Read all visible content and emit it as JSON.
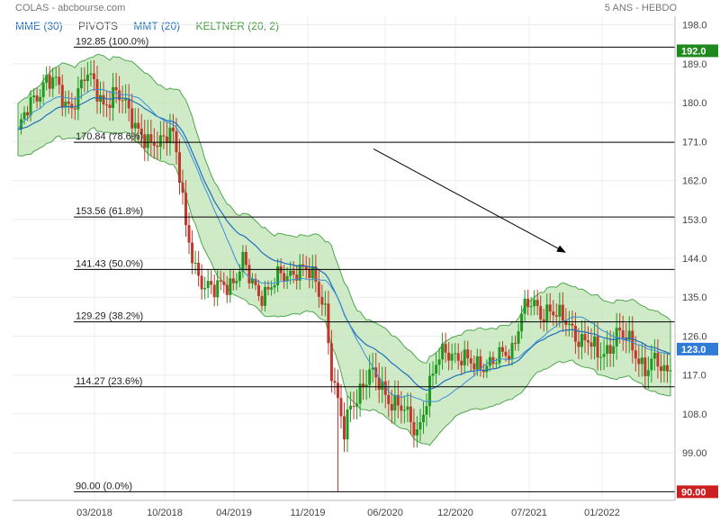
{
  "header": {
    "title": "COLAS - abcbourse.com",
    "period": "5 ANS - HEBDO"
  },
  "legend": [
    {
      "label": "MME (30)",
      "color": "#1f6fbf"
    },
    {
      "label": "PIVOTS",
      "color": "#555555"
    },
    {
      "label": "MMT (20)",
      "color": "#1f6fbf"
    },
    {
      "label": "KELTNER (20, 2)",
      "color": "#3c9a3c"
    }
  ],
  "chart_data": {
    "type": "candlestick",
    "y_axis": {
      "range": [
        88,
        200
      ],
      "ticks": [
        "198.0",
        "189.0",
        "180.0",
        "171.0",
        "162.0",
        "153.0",
        "144.0",
        "135.0",
        "126.0",
        "117.0",
        "108.0",
        "99.00"
      ]
    },
    "x_axis": {
      "ticks": [
        "03/2018",
        "10/2018",
        "04/2019",
        "11/2019",
        "06/2020",
        "12/2020",
        "07/2021",
        "01/2022"
      ]
    },
    "fibonacci_levels": [
      {
        "value": 192.85,
        "label": "192.85  (100.0%)"
      },
      {
        "value": 170.84,
        "label": "170.84  (78.6%)"
      },
      {
        "value": 153.56,
        "label": "153.56  (61.8%)"
      },
      {
        "value": 141.43,
        "label": "141.43  (50.0%)"
      },
      {
        "value": 129.29,
        "label": "129.29  (38.2%)"
      },
      {
        "value": 114.27,
        "label": "114.27  (23.6%)"
      },
      {
        "value": 90.0,
        "label": "90.00  (0.0%)"
      }
    ],
    "price_badges": [
      {
        "value": 192.0,
        "label": "192.0",
        "color": "#1e8a1e"
      },
      {
        "value": 123.0,
        "label": "123.0",
        "color": "#2f7bd6"
      },
      {
        "value": 90.0,
        "label": "90.00",
        "color": "#cc1f1f"
      }
    ],
    "close_path": [
      [
        0,
        173
      ],
      [
        3,
        178
      ],
      [
        6,
        182
      ],
      [
        9,
        186
      ],
      [
        12,
        184
      ],
      [
        15,
        179
      ],
      [
        18,
        181
      ],
      [
        21,
        186
      ],
      [
        24,
        184
      ],
      [
        27,
        180
      ],
      [
        30,
        182
      ],
      [
        33,
        180
      ],
      [
        36,
        177
      ],
      [
        39,
        173
      ],
      [
        42,
        169
      ],
      [
        45,
        171
      ],
      [
        48,
        175
      ],
      [
        49,
        173
      ],
      [
        51,
        163
      ],
      [
        53,
        150
      ],
      [
        56,
        142
      ],
      [
        59,
        138
      ],
      [
        62,
        136
      ],
      [
        65,
        138
      ],
      [
        68,
        139
      ],
      [
        71,
        143
      ],
      [
        73,
        139
      ],
      [
        76,
        136
      ],
      [
        79,
        137
      ],
      [
        82,
        139
      ],
      [
        85,
        140
      ],
      [
        88,
        142
      ],
      [
        91,
        141
      ],
      [
        94,
        138
      ],
      [
        97,
        133
      ],
      [
        99,
        118
      ],
      [
        101,
        110
      ],
      [
        103,
        103
      ],
      [
        105,
        110
      ],
      [
        108,
        114
      ],
      [
        111,
        117
      ],
      [
        114,
        115
      ],
      [
        117,
        112
      ],
      [
        120,
        110
      ],
      [
        123,
        107
      ],
      [
        126,
        104
      ],
      [
        129,
        112
      ],
      [
        132,
        119
      ],
      [
        135,
        123
      ],
      [
        138,
        122
      ],
      [
        141,
        120
      ],
      [
        144,
        119
      ],
      [
        147,
        120
      ],
      [
        150,
        120
      ],
      [
        153,
        121
      ],
      [
        156,
        123
      ],
      [
        159,
        132
      ],
      [
        162,
        133
      ],
      [
        165,
        131
      ],
      [
        168,
        133
      ],
      [
        171,
        130
      ],
      [
        174,
        128
      ],
      [
        177,
        126
      ],
      [
        180,
        125
      ],
      [
        183,
        121
      ],
      [
        186,
        123
      ],
      [
        189,
        127
      ],
      [
        192,
        125
      ],
      [
        195,
        122
      ],
      [
        198,
        119
      ],
      [
        201,
        120
      ],
      [
        204,
        117
      ],
      [
        206,
        120
      ]
    ],
    "pointer_arrow": {
      "from": [
        "11/2019",
        169.3
      ],
      "to": [
        "07/2021",
        145.4
      ]
    }
  }
}
